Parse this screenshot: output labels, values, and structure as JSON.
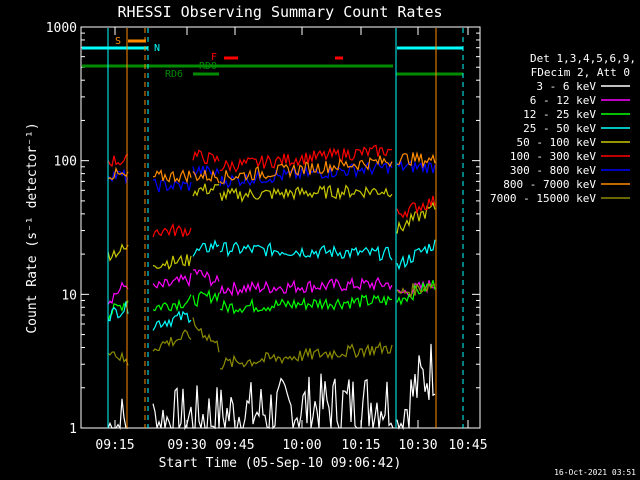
{
  "chart_data": {
    "type": "line",
    "title": "RHESSI Observing Summary Count Rates",
    "xlabel": "Start Time (05-Sep-10 09:06:42)",
    "ylabel": "Count Rate (s⁻¹ detector⁻¹)",
    "ylim": [
      1,
      1000
    ],
    "yscale": "log",
    "xlim_minutes": [
      0,
      1500
    ],
    "x_ticks": [
      "09:15",
      "09:30",
      "09:45",
      "10:00",
      "10:15",
      "10:30",
      "10:45"
    ],
    "y_ticks": [
      "1",
      "10",
      "100",
      "1000"
    ],
    "legend_header": [
      "Det 1,3,4,5,6,9,",
      "FDecim 2, Att 0"
    ],
    "legend_position": "right",
    "footer_date": "16-Oct-2021 03:51",
    "flag_labels": [
      "S",
      "N",
      "F",
      "RDO",
      "RD6"
    ],
    "series": [
      {
        "name": "3 - 6 keV",
        "color": "#ffffff",
        "level_segments": [
          [
            1.0,
            1.1
          ],
          [
            1.1,
            1.6
          ],
          [
            1.0,
            3.0
          ]
        ]
      },
      {
        "name": "6 - 12 keV",
        "color": "#ff00ff",
        "level_segments": [
          [
            9,
            12
          ],
          [
            11,
            13
          ],
          [
            15,
            12
          ],
          [
            11,
            12
          ],
          [
            10,
            12
          ]
        ]
      },
      {
        "name": "12 - 25 keV",
        "color": "#00ff00",
        "level_segments": [
          [
            7,
            9
          ],
          [
            8,
            9
          ],
          [
            9,
            10
          ],
          [
            8,
            9
          ],
          [
            9,
            12
          ]
        ]
      },
      {
        "name": "25 - 50 keV",
        "color": "#00ffff",
        "level_segments": [
          [
            7,
            8
          ],
          [
            6,
            7
          ],
          [
            20,
            24
          ],
          [
            22,
            20
          ],
          [
            16,
            24
          ]
        ]
      },
      {
        "name": "50 - 100 keV",
        "color": "#c8c800",
        "level_segments": [
          [
            20,
            22
          ],
          [
            17,
            18
          ],
          [
            60,
            62
          ],
          [
            55,
            60
          ],
          [
            30,
            45
          ]
        ]
      },
      {
        "name": "100 - 300 keV",
        "color": "#ff0000",
        "level_segments": [
          [
            100,
            100
          ],
          [
            30,
            30
          ],
          [
            110,
            100
          ],
          [
            90,
            120
          ],
          [
            40,
            50
          ]
        ]
      },
      {
        "name": "300 - 800 keV",
        "color": "#0000ff",
        "level_segments": [
          [
            80,
            75
          ],
          [
            65,
            65
          ],
          [
            85,
            80
          ],
          [
            70,
            90
          ],
          [
            90,
            90
          ]
        ]
      },
      {
        "name": "800 - 7000 keV",
        "color": "#ff8c00",
        "level_segments": [
          [
            80,
            75
          ],
          [
            75,
            78
          ],
          [
            78,
            76
          ],
          [
            75,
            100
          ],
          [
            105,
            100
          ]
        ]
      },
      {
        "name": "7000 - 15000 keV",
        "color": "#8c8c00",
        "level_segments": [
          [
            4,
            3
          ],
          [
            4,
            5
          ],
          [
            6,
            4
          ],
          [
            3,
            4
          ],
          [
            10,
            12
          ]
        ]
      }
    ]
  }
}
